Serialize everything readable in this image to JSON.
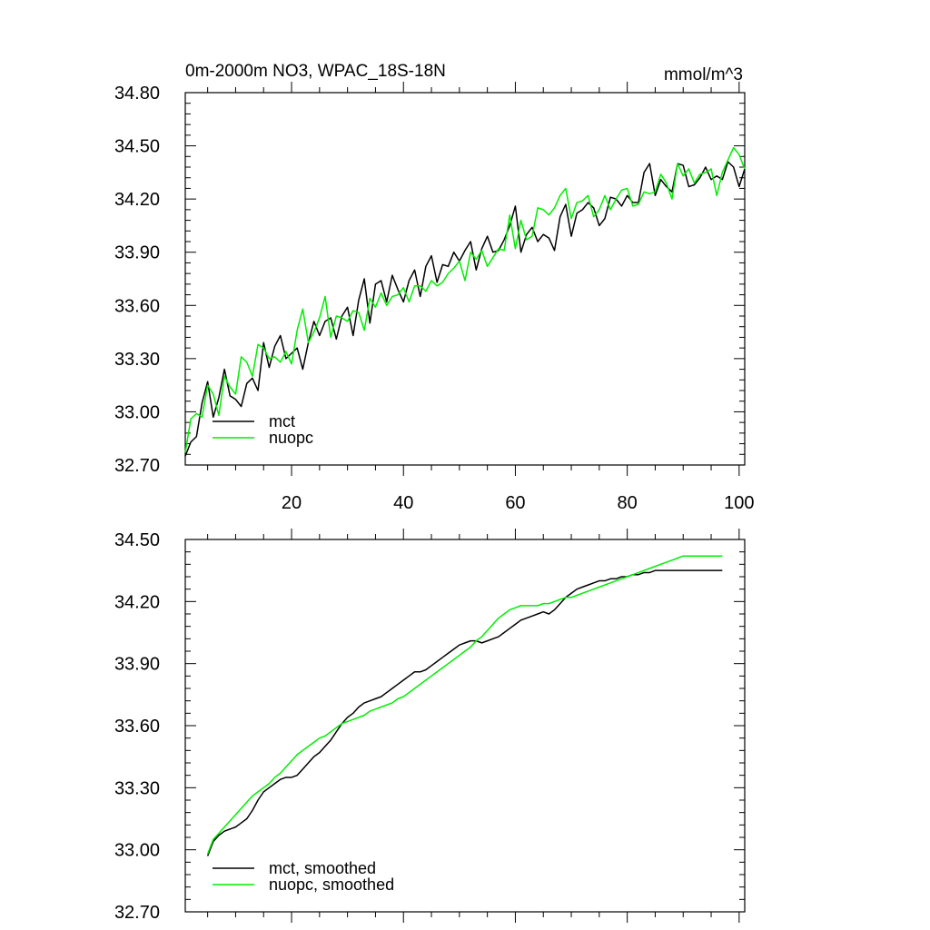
{
  "colors": {
    "mct": "#000000",
    "nuopc": "#00ee00",
    "axis": "#000000"
  },
  "chart_data": [
    {
      "type": "line",
      "title": "0m-2000m NO3, WPAC_18S-18N",
      "units": "mmol/m^3",
      "xlim": [
        1,
        101
      ],
      "ylim": [
        32.7,
        34.8
      ],
      "xticks": [
        20,
        40,
        60,
        80,
        100
      ],
      "xtick_labels": [
        "20",
        "40",
        "60",
        "80",
        "100"
      ],
      "yticks": [
        32.7,
        33.0,
        33.3,
        33.6,
        33.9,
        34.2,
        34.5,
        34.8
      ],
      "ytick_labels": [
        "32.70",
        "33.00",
        "33.30",
        "33.60",
        "33.90",
        "34.20",
        "34.50",
        "34.80"
      ],
      "legend_position": "bottom-left",
      "series": [
        {
          "name": "mct",
          "color": "#000000",
          "values": [
            32.75,
            32.83,
            32.86,
            33.05,
            33.17,
            32.97,
            33.08,
            33.24,
            33.09,
            33.07,
            33.03,
            33.16,
            33.19,
            33.12,
            33.39,
            33.25,
            33.37,
            33.43,
            33.3,
            33.33,
            33.36,
            33.24,
            33.39,
            33.51,
            33.43,
            33.51,
            33.53,
            33.41,
            33.54,
            33.59,
            33.43,
            33.63,
            33.75,
            33.5,
            33.72,
            33.74,
            33.62,
            33.77,
            33.69,
            33.62,
            33.74,
            33.8,
            33.65,
            33.82,
            33.88,
            33.73,
            33.83,
            33.82,
            33.9,
            33.85,
            33.91,
            33.96,
            33.8,
            33.92,
            33.99,
            33.9,
            33.91,
            33.97,
            34.05,
            34.16,
            33.9,
            34.0,
            34.04,
            33.96,
            34.0,
            33.98,
            33.91,
            34.1,
            34.17,
            33.99,
            34.12,
            34.14,
            34.18,
            34.15,
            34.05,
            34.09,
            34.21,
            34.2,
            34.16,
            34.22,
            34.18,
            34.18,
            34.35,
            34.4,
            34.22,
            34.31,
            34.27,
            34.24,
            34.4,
            34.39,
            34.27,
            34.28,
            34.32,
            34.38,
            34.31,
            34.33,
            34.31,
            34.41,
            34.38,
            34.27,
            34.37
          ]
        },
        {
          "name": "nuopc",
          "color": "#00ee00",
          "values": [
            32.77,
            32.96,
            32.99,
            32.97,
            33.15,
            33.1,
            32.98,
            33.2,
            33.14,
            33.1,
            33.31,
            33.28,
            33.2,
            33.38,
            33.36,
            33.3,
            33.31,
            33.28,
            33.34,
            33.27,
            33.46,
            33.58,
            33.39,
            33.45,
            33.53,
            33.65,
            33.42,
            33.54,
            33.53,
            33.51,
            33.57,
            33.56,
            33.46,
            33.64,
            33.59,
            33.67,
            33.6,
            33.65,
            33.66,
            33.7,
            33.62,
            33.71,
            33.71,
            33.68,
            33.74,
            33.71,
            33.73,
            33.78,
            33.81,
            33.85,
            33.74,
            33.9,
            33.86,
            33.91,
            33.82,
            33.87,
            33.92,
            33.91,
            34.11,
            33.92,
            34.08,
            33.97,
            33.99,
            34.15,
            34.14,
            34.11,
            34.15,
            34.22,
            34.26,
            34.09,
            34.18,
            34.19,
            34.22,
            34.1,
            34.14,
            34.22,
            34.14,
            34.2,
            34.25,
            34.26,
            34.16,
            34.17,
            34.24,
            34.23,
            34.24,
            34.34,
            34.29,
            34.2,
            34.4,
            34.33,
            34.37,
            34.29,
            34.34,
            34.35,
            34.37,
            34.22,
            34.35,
            34.42,
            34.49,
            34.45,
            34.37
          ]
        }
      ]
    },
    {
      "type": "line",
      "title": "",
      "xlim": [
        1,
        101
      ],
      "ylim": [
        32.7,
        34.5
      ],
      "xticks": [
        20,
        40,
        60,
        80,
        100
      ],
      "xtick_labels": [],
      "yticks": [
        32.7,
        33.0,
        33.3,
        33.6,
        33.9,
        34.2,
        34.5
      ],
      "ytick_labels": [
        "32.70",
        "33.00",
        "33.30",
        "33.60",
        "33.90",
        "34.20",
        "34.50"
      ],
      "legend_position": "bottom-left",
      "series": [
        {
          "name": "mct, smoothed",
          "color": "#000000",
          "x_start": 5,
          "values": [
            32.97,
            33.04,
            33.07,
            33.09,
            33.1,
            33.11,
            33.13,
            33.15,
            33.19,
            33.24,
            33.28,
            33.3,
            33.32,
            33.34,
            33.35,
            33.35,
            33.36,
            33.39,
            33.42,
            33.45,
            33.47,
            33.5,
            33.53,
            33.57,
            33.61,
            33.64,
            33.66,
            33.69,
            33.71,
            33.72,
            33.73,
            33.74,
            33.76,
            33.78,
            33.8,
            33.82,
            33.84,
            33.86,
            33.86,
            33.87,
            33.89,
            33.91,
            33.93,
            33.95,
            33.97,
            33.99,
            34.0,
            34.01,
            34.01,
            34.0,
            34.01,
            34.02,
            34.03,
            34.05,
            34.07,
            34.09,
            34.11,
            34.12,
            34.13,
            34.14,
            34.15,
            34.14,
            34.16,
            34.19,
            34.22,
            34.24,
            34.26,
            34.27,
            34.28,
            34.29,
            34.3,
            34.3,
            34.31,
            34.31,
            34.32,
            34.32,
            34.33,
            34.33,
            34.34,
            34.34,
            34.35,
            34.35,
            34.35,
            34.35,
            34.35,
            34.35,
            34.35,
            34.35,
            34.35,
            34.35,
            34.35,
            34.35,
            34.35
          ]
        },
        {
          "name": "nuopc, smoothed",
          "color": "#00ee00",
          "x_start": 5,
          "values": [
            32.98,
            33.05,
            33.08,
            33.11,
            33.14,
            33.17,
            33.2,
            33.23,
            33.26,
            33.28,
            33.3,
            33.32,
            33.35,
            33.37,
            33.4,
            33.43,
            33.46,
            33.48,
            33.5,
            33.52,
            33.54,
            33.55,
            33.57,
            33.59,
            33.61,
            33.62,
            33.63,
            33.64,
            33.65,
            33.67,
            33.68,
            33.69,
            33.7,
            33.71,
            33.73,
            33.74,
            33.76,
            33.78,
            33.8,
            33.82,
            33.84,
            33.86,
            33.88,
            33.9,
            33.92,
            33.94,
            33.96,
            33.98,
            34.01,
            34.03,
            34.06,
            34.09,
            34.12,
            34.14,
            34.16,
            34.17,
            34.18,
            34.18,
            34.18,
            34.18,
            34.19,
            34.19,
            34.2,
            34.21,
            34.22,
            34.22,
            34.23,
            34.24,
            34.25,
            34.26,
            34.27,
            34.28,
            34.29,
            34.3,
            34.31,
            34.32,
            34.33,
            34.34,
            34.35,
            34.36,
            34.37,
            34.38,
            34.39,
            34.4,
            34.41,
            34.42,
            34.42,
            34.42,
            34.42,
            34.42,
            34.42,
            34.42,
            34.42
          ]
        }
      ]
    }
  ]
}
